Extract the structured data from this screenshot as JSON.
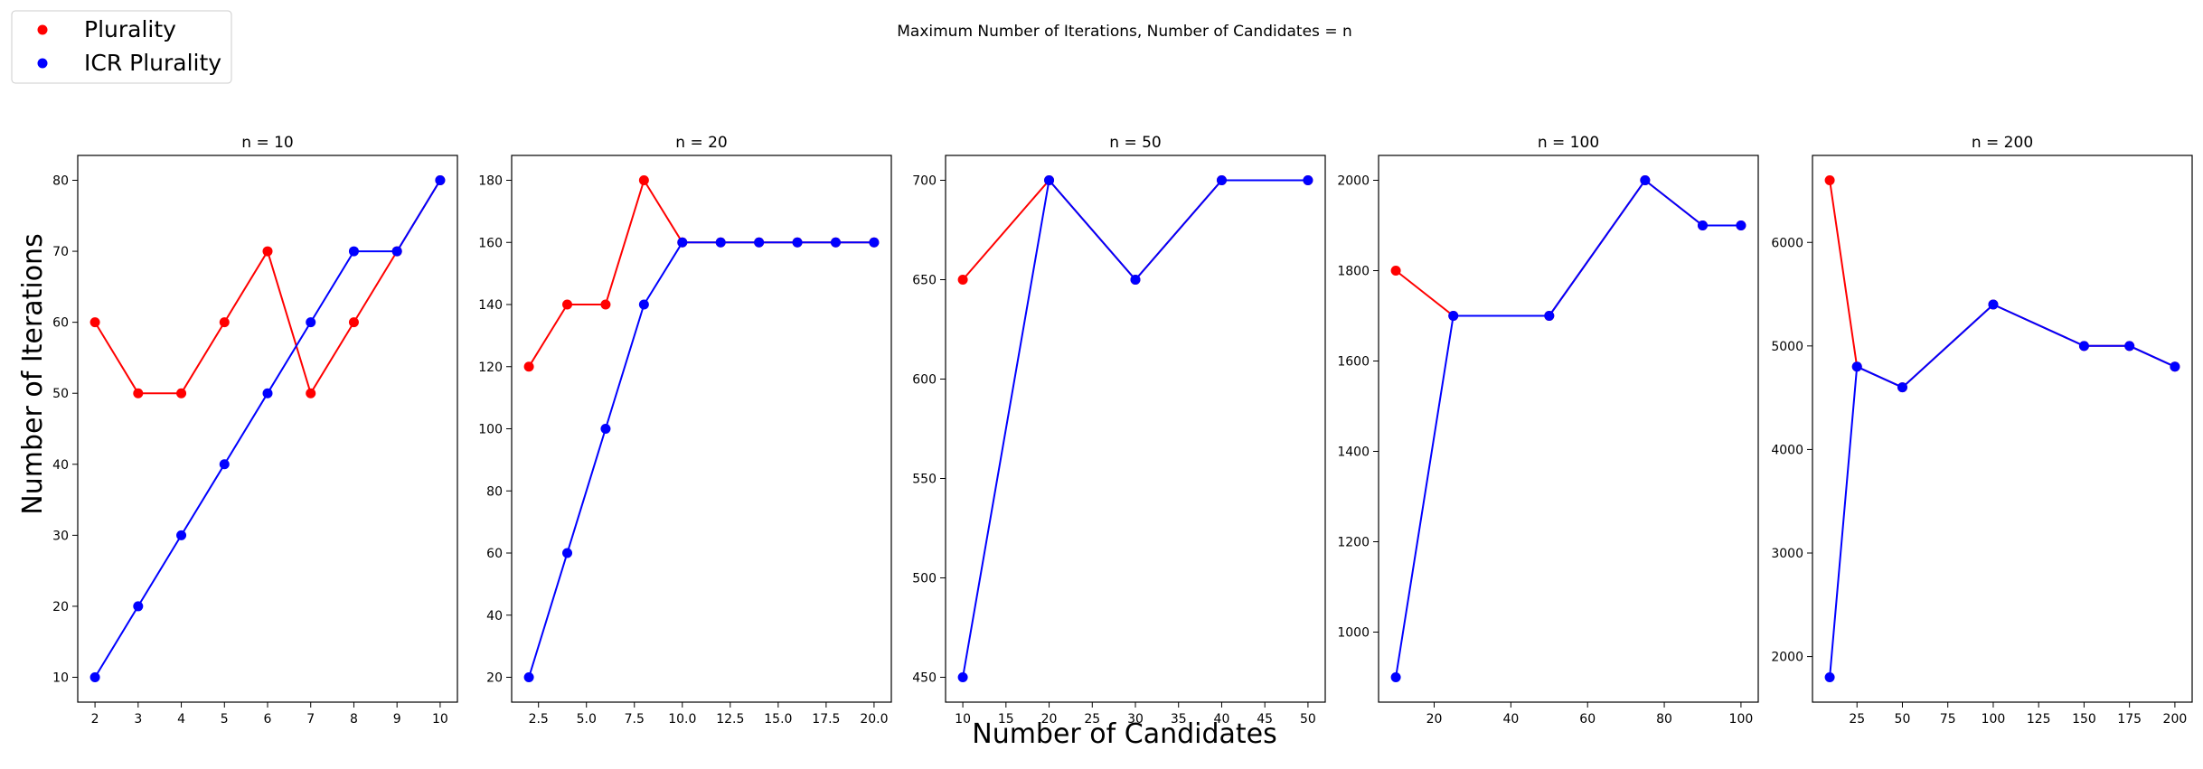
{
  "figure": {
    "suptitle": "Maximum Number of Iterations, Number of Candidates = n",
    "xlabel": "Number of Candidates",
    "ylabel": "Number of Iterations"
  },
  "legend": {
    "placement": "top-left",
    "entries": [
      {
        "label": "Plurality",
        "color": "#ff0000"
      },
      {
        "label": "ICR Plurality",
        "color": "#0000ff"
      }
    ]
  },
  "chart_data": [
    {
      "type": "line",
      "title": "n = 10",
      "xlim": [
        1.6,
        10.4
      ],
      "ylim": [
        6.5,
        83.5
      ],
      "xticks": [
        2,
        3,
        4,
        5,
        6,
        7,
        8,
        9,
        10
      ],
      "xtick_labels": [
        "2",
        "3",
        "4",
        "5",
        "6",
        "7",
        "8",
        "9",
        "10"
      ],
      "yticks": [
        10,
        20,
        30,
        40,
        50,
        60,
        70,
        80
      ],
      "ytick_labels": [
        "10",
        "20",
        "30",
        "40",
        "50",
        "60",
        "70",
        "80"
      ],
      "series": [
        {
          "name": "Plurality",
          "color": "#ff0000",
          "x": [
            2,
            3,
            4,
            5,
            6,
            7,
            8,
            9,
            10
          ],
          "y": [
            60,
            50,
            50,
            60,
            70,
            50,
            60,
            70,
            80
          ]
        },
        {
          "name": "ICR Plurality",
          "color": "#0000ff",
          "x": [
            2,
            3,
            4,
            5,
            6,
            7,
            8,
            9,
            10
          ],
          "y": [
            10,
            20,
            30,
            40,
            50,
            60,
            70,
            70,
            80
          ]
        }
      ]
    },
    {
      "type": "line",
      "title": "n = 20",
      "xlim": [
        1.1,
        20.9
      ],
      "ylim": [
        12,
        188
      ],
      "xticks": [
        2.5,
        5,
        7.5,
        10,
        12.5,
        15,
        17.5,
        20
      ],
      "xtick_labels": [
        "2.5",
        "5.0",
        "7.5",
        "10.0",
        "12.5",
        "15.0",
        "17.5",
        "20.0"
      ],
      "yticks": [
        20,
        40,
        60,
        80,
        100,
        120,
        140,
        160,
        180
      ],
      "ytick_labels": [
        "20",
        "40",
        "60",
        "80",
        "100",
        "120",
        "140",
        "160",
        "180"
      ],
      "series": [
        {
          "name": "Plurality",
          "color": "#ff0000",
          "x": [
            2,
            4,
            6,
            8,
            10,
            12,
            14,
            16,
            18,
            20
          ],
          "y": [
            120,
            140,
            140,
            180,
            160,
            160,
            160,
            160,
            160,
            160
          ]
        },
        {
          "name": "ICR Plurality",
          "color": "#0000ff",
          "x": [
            2,
            4,
            6,
            8,
            10,
            12,
            14,
            16,
            18,
            20
          ],
          "y": [
            20,
            60,
            100,
            140,
            160,
            160,
            160,
            160,
            160,
            160
          ]
        }
      ]
    },
    {
      "type": "line",
      "title": "n = 50",
      "xlim": [
        8,
        52
      ],
      "ylim": [
        437.5,
        712.5
      ],
      "xticks": [
        10,
        15,
        20,
        25,
        30,
        35,
        40,
        45,
        50
      ],
      "xtick_labels": [
        "10",
        "15",
        "20",
        "25",
        "30",
        "35",
        "40",
        "45",
        "50"
      ],
      "yticks": [
        450,
        500,
        550,
        600,
        650,
        700
      ],
      "ytick_labels": [
        "450",
        "500",
        "550",
        "600",
        "650",
        "700"
      ],
      "series": [
        {
          "name": "Plurality",
          "color": "#ff0000",
          "x": [
            10,
            20,
            30,
            40,
            50
          ],
          "y": [
            650,
            700,
            650,
            700,
            700
          ]
        },
        {
          "name": "ICR Plurality",
          "color": "#0000ff",
          "x": [
            10,
            20,
            30,
            40,
            50
          ],
          "y": [
            450,
            700,
            650,
            700,
            700
          ]
        }
      ]
    },
    {
      "type": "line",
      "title": "n = 100",
      "xlim": [
        5.5,
        104.5
      ],
      "ylim": [
        845,
        2055
      ],
      "xticks": [
        20,
        40,
        60,
        80,
        100
      ],
      "xtick_labels": [
        "20",
        "40",
        "60",
        "80",
        "100"
      ],
      "yticks": [
        1000,
        1200,
        1400,
        1600,
        1800,
        2000
      ],
      "ytick_labels": [
        "1000",
        "1200",
        "1400",
        "1600",
        "1800",
        "2000"
      ],
      "series": [
        {
          "name": "Plurality",
          "color": "#ff0000",
          "x": [
            10,
            25,
            50,
            75,
            90,
            100
          ],
          "y": [
            1800,
            1700,
            1700,
            2000,
            1900,
            1900
          ]
        },
        {
          "name": "ICR Plurality",
          "color": "#0000ff",
          "x": [
            10,
            25,
            50,
            75,
            90,
            100
          ],
          "y": [
            900,
            1700,
            1700,
            2000,
            1900,
            1900
          ]
        }
      ]
    },
    {
      "type": "line",
      "title": "n = 200",
      "xlim": [
        0.5,
        209.5
      ],
      "ylim": [
        1560,
        6840
      ],
      "xticks": [
        25,
        50,
        75,
        100,
        125,
        150,
        175,
        200
      ],
      "xtick_labels": [
        "25",
        "50",
        "75",
        "100",
        "125",
        "150",
        "175",
        "200"
      ],
      "yticks": [
        2000,
        3000,
        4000,
        5000,
        6000
      ],
      "ytick_labels": [
        "2000",
        "3000",
        "4000",
        "5000",
        "6000"
      ],
      "series": [
        {
          "name": "Plurality",
          "color": "#ff0000",
          "x": [
            10,
            25,
            50,
            100,
            150,
            175,
            200
          ],
          "y": [
            6600,
            4800,
            4600,
            5400,
            5000,
            5000,
            4800
          ]
        },
        {
          "name": "ICR Plurality",
          "color": "#0000ff",
          "x": [
            10,
            25,
            50,
            100,
            150,
            175,
            200
          ],
          "y": [
            1800,
            4800,
            4600,
            5400,
            5000,
            5000,
            4800
          ]
        }
      ]
    }
  ]
}
